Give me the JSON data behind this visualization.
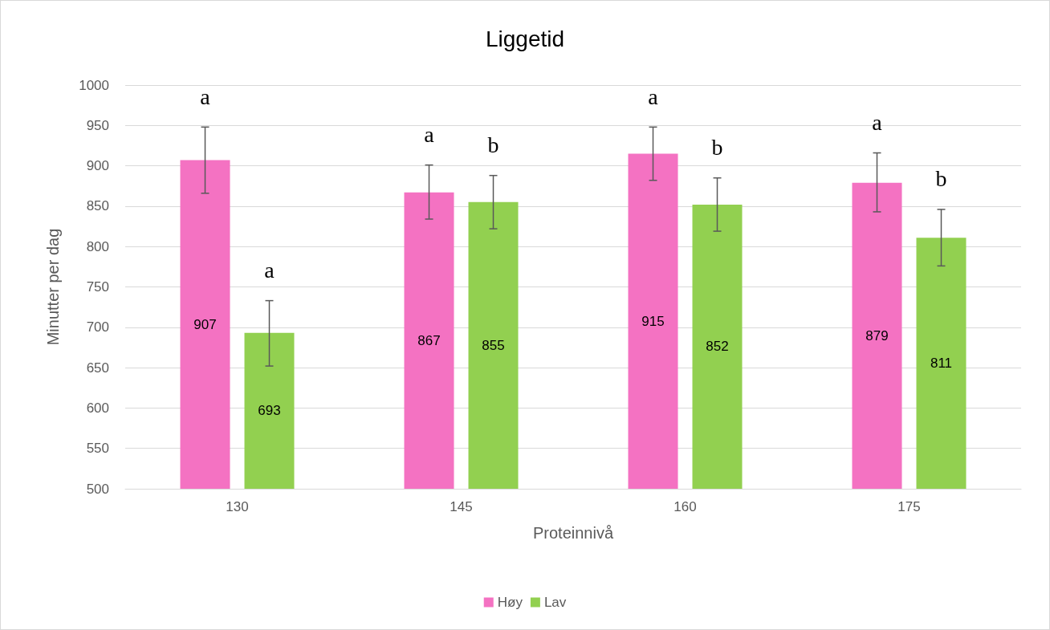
{
  "chart_data": {
    "type": "bar",
    "title": "Liggetid",
    "xlabel": "Proteinnivå",
    "ylabel": "Minutter per dag",
    "categories": [
      "130",
      "145",
      "160",
      "175"
    ],
    "series": [
      {
        "name": "Høy",
        "color": "#f472c2",
        "values": [
          907,
          867,
          915,
          879
        ],
        "errors": [
          [
            866,
            948
          ],
          [
            834,
            901
          ],
          [
            882,
            948
          ],
          [
            843,
            916
          ]
        ]
      },
      {
        "name": "Lav",
        "color": "#92d050",
        "values": [
          693,
          855,
          852,
          811
        ],
        "errors": [
          [
            652,
            733
          ],
          [
            822,
            888
          ],
          [
            819,
            885
          ],
          [
            776,
            846
          ]
        ]
      }
    ],
    "ylim": [
      500,
      1000
    ],
    "yticks": [
      500,
      550,
      600,
      650,
      700,
      750,
      800,
      850,
      900,
      950,
      1000
    ],
    "grid": "y",
    "legend": "bottom",
    "data_labels": true,
    "annotations": [
      "a",
      "a",
      "a",
      "b",
      "a",
      "b",
      "a",
      "b"
    ]
  }
}
